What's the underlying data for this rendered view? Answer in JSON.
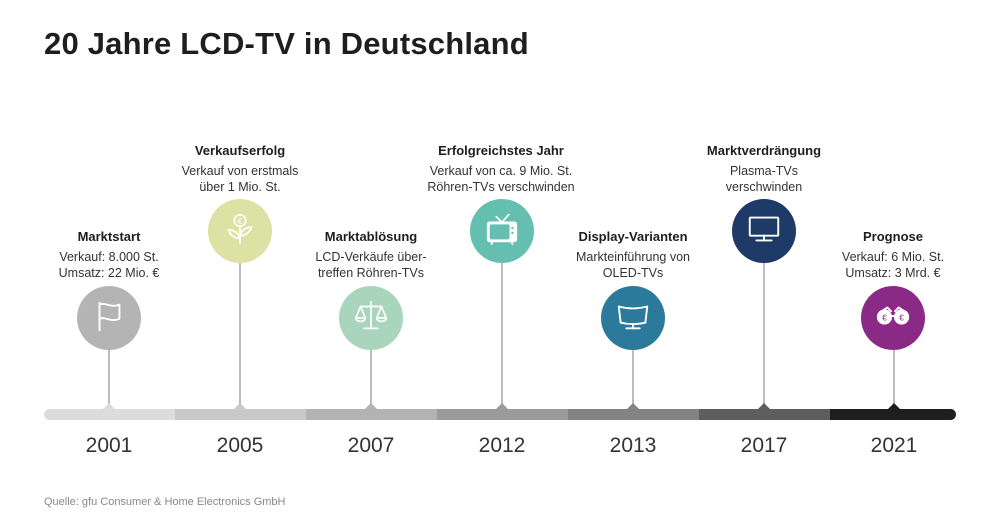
{
  "title": "20 Jahre LCD-TV in Deutschland",
  "source": "Quelle: gfu Consumer & Home Electronics GmbH",
  "milestones": [
    {
      "year": "2001",
      "heading": "Marktstart",
      "lines": [
        "Verkauf: 8.000 St.",
        "Umsatz: 22 Mio. €"
      ],
      "icon": "flag-icon",
      "color": "#b4b4b4",
      "bar_color": "#dcdcdc"
    },
    {
      "year": "2005",
      "heading": "Verkaufserfolg",
      "lines": [
        "Verkauf von erstmals",
        "über 1 Mio. St."
      ],
      "icon": "money-plant-icon",
      "color": "#dbe2a3",
      "bar_color": "#c9c9c9"
    },
    {
      "year": "2007",
      "heading": "Marktablösung",
      "lines": [
        "LCD-Verkäufe über-",
        "treffen Röhren-TVs"
      ],
      "icon": "scales-icon",
      "color": "#a9d5bd",
      "bar_color": "#b3b3b3"
    },
    {
      "year": "2012",
      "heading": "Erfolgreichstes Jahr",
      "lines": [
        "Verkauf von ca. 9 Mio. St.",
        "Röhren-TVs verschwinden"
      ],
      "icon": "tube-tv-icon",
      "color": "#64bfb0",
      "bar_color": "#9b9b9b"
    },
    {
      "year": "2013",
      "heading": "Display-Varianten",
      "lines": [
        "Markteinführung von",
        "OLED-TVs"
      ],
      "icon": "curved-tv-icon",
      "color": "#2b7a9c",
      "bar_color": "#838383"
    },
    {
      "year": "2017",
      "heading": "Marktverdrängung",
      "lines": [
        "Plasma-TVs",
        "verschwinden"
      ],
      "icon": "flat-tv-icon",
      "color": "#1e3a66",
      "bar_color": "#5e5e5e"
    },
    {
      "year": "2021",
      "heading": "Prognose",
      "lines": [
        "Verkauf: 6 Mio. St.",
        "Umsatz: 3 Mrd. €"
      ],
      "icon": "binoculars-icon",
      "color": "#8a2a86",
      "bar_color": "#1e1e1e"
    }
  ]
}
